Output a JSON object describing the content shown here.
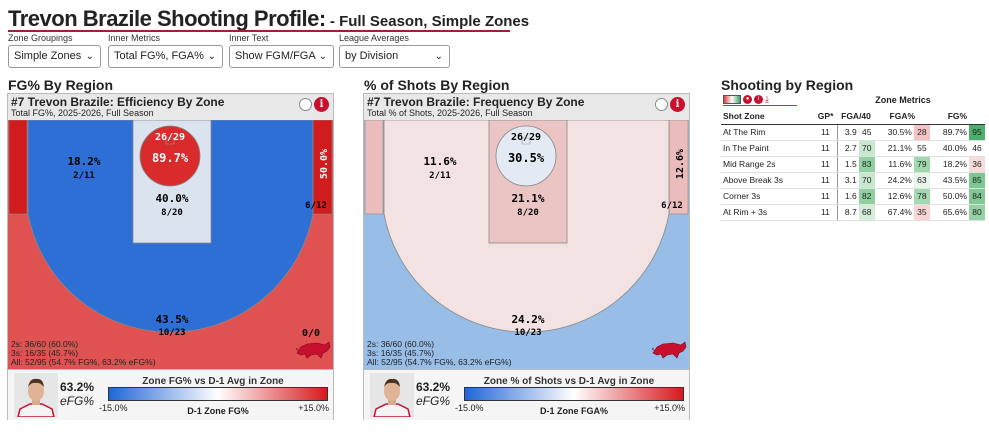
{
  "header": {
    "title": "Trevon Brazile Shooting Profile:",
    "subtitle_prefix": " - ",
    "subtitle_season": "Full Season",
    "subtitle_sep": ", ",
    "subtitle_zones": "Simple Zones"
  },
  "controls": [
    {
      "label": "Zone Groupings",
      "value": "Simple Zones"
    },
    {
      "label": "Inner Metrics",
      "value": "Total FG%, FGA%"
    },
    {
      "label": "Inner Text",
      "value": "Show FGM/FGA"
    },
    {
      "label": "League Averages",
      "value": "by Division"
    }
  ],
  "sections": {
    "fg_by_region": "FG% By Region",
    "shots_by_region": "% of Shots By Region",
    "shooting_by_region": "Shooting by Region"
  },
  "panels": [
    {
      "title": "#7 Trevon Brazile: Efficiency By Zone",
      "subtitle": "Total FG%, 2025-2026, Full Season",
      "info_glyph": "i",
      "zones": {
        "rim": {
          "pct": "89.7%",
          "frac": "26/29",
          "color": "#d92b2b"
        },
        "paint": {
          "pct": "40.0%",
          "frac": "8/20",
          "color": "#dbe3ee"
        },
        "mid": {
          "pct": "18.2%",
          "frac": "2/11",
          "color": "#2e6fd6"
        },
        "corner": {
          "pct": "50.0%",
          "frac": "6/12",
          "color": "#d01c1c"
        },
        "three": {
          "pct": "43.5%",
          "frac": "10/23",
          "color": "#e05252"
        },
        "deep": {
          "frac": "0/0"
        }
      },
      "totals": [
        "2s: 36/60 (60.0%)",
        "3s: 16/35 (45.7%)",
        "All: 52/95 (54.7% FG%, 63.2% eFG%)"
      ],
      "efg_value": "63.2%",
      "efg_label": "eFG%",
      "legend_title": "Zone FG% vs D-1 Avg in Zone",
      "legend_min": "-15.0%",
      "legend_mid": "D-1 Zone FG%",
      "legend_max": "+15.0%"
    },
    {
      "title": "#7 Trevon Brazile: Frequency By Zone",
      "subtitle": "Total % of Shots, 2025-2026, Full Season",
      "info_glyph": "i",
      "zones": {
        "rim": {
          "pct": "30.5%",
          "frac": "26/29",
          "color": "#e4eaf3"
        },
        "paint": {
          "pct": "21.1%",
          "frac": "8/20",
          "color": "#ebc4c4"
        },
        "mid": {
          "pct": "11.6%",
          "frac": "2/11",
          "color": "#f3e2e2"
        },
        "corner": {
          "pct": "12.6%",
          "frac": "6/12",
          "color": "#ebbcbc"
        },
        "three": {
          "pct": "24.2%",
          "frac": "10/23",
          "color": "#98bde6"
        },
        "deep": {
          "frac": ""
        }
      },
      "totals": [
        "2s: 36/60 (60.0%)",
        "3s: 16/35 (45.7%)",
        "All: 52/95 (54.7% FG%, 63.2% eFG%)"
      ],
      "efg_value": "63.2%",
      "efg_label": "eFG%",
      "legend_title": "Zone % of Shots vs D-1 Avg in Zone",
      "legend_min": "-15.0%",
      "legend_mid": "D-1 Zone FGA%",
      "legend_max": "+15.0%"
    }
  ],
  "table": {
    "zone_metrics_header": "Zone Metrics",
    "columns": [
      "Shot Zone",
      "GP*",
      "FGA/40",
      "FGA%",
      "FG%"
    ],
    "rows": [
      {
        "zone": "At The Rim",
        "gp": "11",
        "fga40": "3.9",
        "fga40_pct": "45",
        "fga40_color": "#ffffff",
        "fgap": "30.5%",
        "fgap_pct": "28",
        "fgap_color": "#f4c4c4",
        "fg": "89.7%",
        "fg_pct": "95",
        "fg_color": "#4caf6a"
      },
      {
        "zone": "In The Paint",
        "gp": "11",
        "fga40": "2.7",
        "fga40_pct": "70",
        "fga40_color": "#c8e8cf",
        "fgap": "21.1%",
        "fgap_pct": "55",
        "fgap_color": "#ffffff",
        "fg": "40.0%",
        "fg_pct": "46",
        "fg_color": "#ffffff"
      },
      {
        "zone": "Mid Range 2s",
        "gp": "11",
        "fga40": "1.5",
        "fga40_pct": "83",
        "fga40_color": "#8fd1a0",
        "fgap": "11.6%",
        "fgap_pct": "79",
        "fgap_color": "#9fd8ad",
        "fg": "18.2%",
        "fg_pct": "36",
        "fg_color": "#f8dcdc"
      },
      {
        "zone": "Above Break 3s",
        "gp": "11",
        "fga40": "3.1",
        "fga40_pct": "70",
        "fga40_color": "#c8e8cf",
        "fgap": "24.2%",
        "fgap_pct": "63",
        "fgap_color": "#e8f5ea",
        "fg": "43.5%",
        "fg_pct": "85",
        "fg_color": "#7cc890"
      },
      {
        "zone": "Corner 3s",
        "gp": "11",
        "fga40": "1.6",
        "fga40_pct": "82",
        "fga40_color": "#8fd1a0",
        "fgap": "12.6%",
        "fgap_pct": "78",
        "fgap_color": "#a3d9b1",
        "fg": "50.0%",
        "fg_pct": "84",
        "fg_color": "#80c994"
      },
      {
        "zone": "At Rim + 3s",
        "gp": "11",
        "fga40": "8.7",
        "fga40_pct": "68",
        "fga40_color": "#d4edd9",
        "fgap": "67.4%",
        "fgap_pct": "35",
        "fgap_color": "#f8d4d4",
        "fg": "65.6%",
        "fg_pct": "80",
        "fg_color": "#94d1a4"
      }
    ]
  }
}
